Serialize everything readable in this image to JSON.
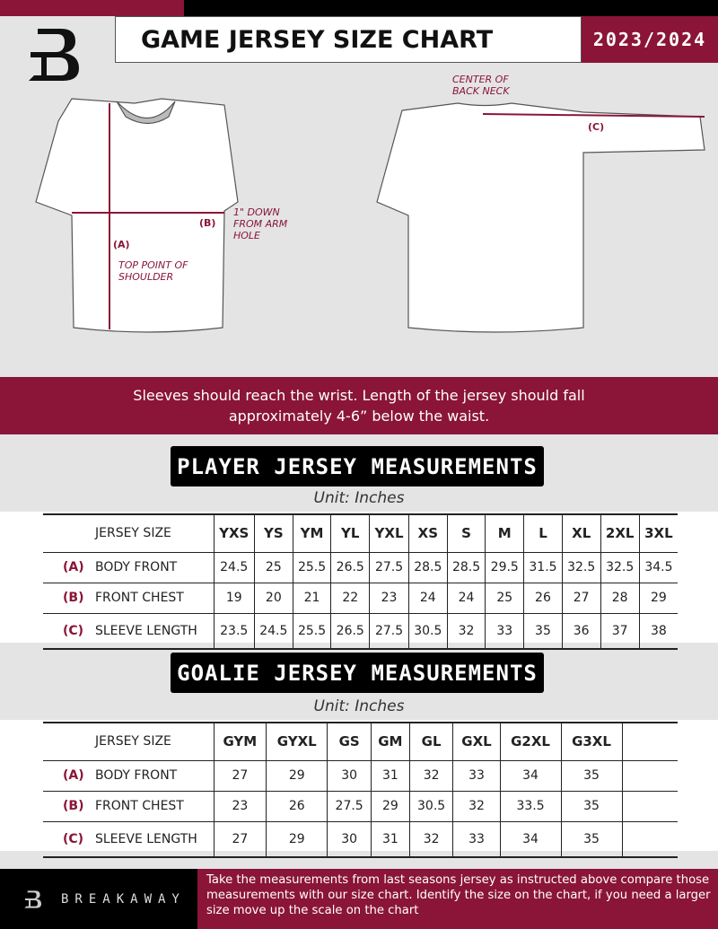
{
  "header": {
    "title": "GAME JERSEY SIZE CHART",
    "season": "2023/2024"
  },
  "diagram": {
    "front_labels": {
      "a": "(A)",
      "a_desc": "TOP POINT OF SHOULDER",
      "b": "(B)",
      "b_desc": "1\" DOWN FROM ARM HOLE"
    },
    "back_labels": {
      "c": "(C)",
      "c_desc": "CENTER OF BACK NECK"
    }
  },
  "instruction": "Sleeves should reach the wrist. Length of the jersey should fall approximately 4-6” below the waist.",
  "colors": {
    "maroon": "#8a1538",
    "black": "#000000"
  },
  "player": {
    "title": "PLAYER JERSEY MEASUREMENTS",
    "unit": "Unit: Inches",
    "size_header": "JERSEY SIZE",
    "sizes": [
      "YXS",
      "YS",
      "YM",
      "YL",
      "YXL",
      "XS",
      "S",
      "M",
      "L",
      "XL",
      "2XL",
      "3XL"
    ],
    "rows": [
      {
        "letter": "(A)",
        "label": "BODY FRONT",
        "values": [
          "24.5",
          "25",
          "25.5",
          "26.5",
          "27.5",
          "28.5",
          "28.5",
          "29.5",
          "31.5",
          "32.5",
          "32.5",
          "34.5"
        ]
      },
      {
        "letter": "(B)",
        "label": "FRONT CHEST",
        "values": [
          "19",
          "20",
          "21",
          "22",
          "23",
          "24",
          "24",
          "25",
          "26",
          "27",
          "28",
          "29"
        ]
      },
      {
        "letter": "(C)",
        "label": "SLEEVE LENGTH",
        "values": [
          "23.5",
          "24.5",
          "25.5",
          "26.5",
          "27.5",
          "30.5",
          "32",
          "33",
          "35",
          "36",
          "37",
          "38"
        ]
      }
    ]
  },
  "goalie": {
    "title": "GOALIE JERSEY MEASUREMENTS",
    "unit": "Unit: Inches",
    "size_header": "JERSEY SIZE",
    "sizes": [
      "GYM",
      "GYXL",
      "GS",
      "GM",
      "GL",
      "GXL",
      "G2XL",
      "G3XL"
    ],
    "rows": [
      {
        "letter": "(A)",
        "label": "BODY FRONT",
        "values": [
          "27",
          "29",
          "30",
          "31",
          "32",
          "33",
          "34",
          "35"
        ]
      },
      {
        "letter": "(B)",
        "label": "FRONT CHEST",
        "values": [
          "23",
          "26",
          "27.5",
          "29",
          "30.5",
          "32",
          "33.5",
          "35"
        ]
      },
      {
        "letter": "(C)",
        "label": "SLEEVE LENGTH",
        "values": [
          "27",
          "29",
          "30",
          "31",
          "32",
          "33",
          "34",
          "35"
        ]
      }
    ]
  },
  "footer": {
    "brand": "BREAKAWAY",
    "text": "Take the measurements from last seasons jersey as instructed above compare those measurements  with our size chart. Identify the size on the chart, if you need a larger size move up the scale on the chart"
  }
}
